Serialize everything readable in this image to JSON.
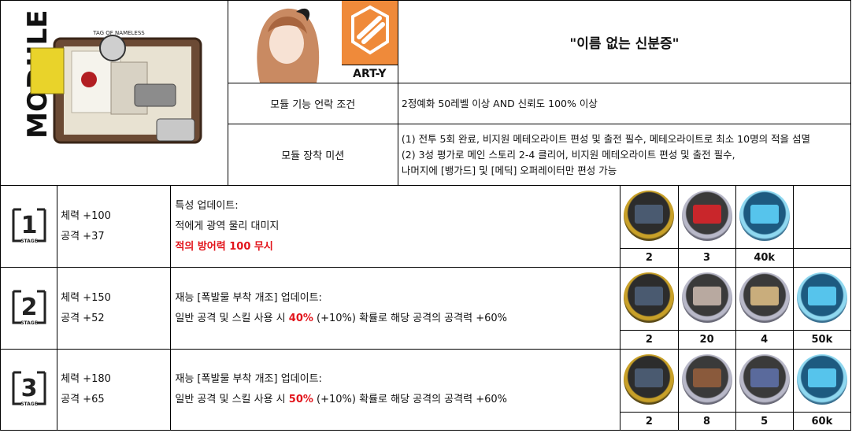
{
  "header": {
    "title": "\"이름 없는 신분증\"",
    "brand_name": "ART-Y",
    "artwork_label": "TAG OF NAMELESS",
    "side_label": "MODULE",
    "unlock_label": "모듈 기능 언락 조건",
    "unlock_value": "2정예화 50레벨 이상 AND 신뢰도 100% 이상",
    "mission_label": "모듈 장착 미션",
    "mission_lines": [
      "(1) 전투 5회 완료, 비지원 메테오라이트 편성 및 출전 필수, 메테오라이트로 최소 10명의 적을 섬멸",
      "(2) 3성 평가로 메인 스토리 2-4 클리어, 비지원 메테오라이트 편성 및 출전 필수,",
      "나머지에 [뱅가드] 및 [메딕] 오퍼레이터만 편성 가능"
    ],
    "colors": {
      "brand_bg": "#ef8a3a",
      "emphasis": "#e2141b"
    }
  },
  "stages": [
    {
      "num": "1",
      "badge_text": "STAGE",
      "hp": "체력 +100",
      "atk": "공격 +37",
      "effect_title": "특성 업데이트:",
      "effect_line": "적에게 광역 물리 대미지",
      "effect_red": "적의 방어력 100 무시",
      "materials": [
        {
          "icon": "module-data-block-icon",
          "qty": "2"
        },
        {
          "icon": "red-bricks-icon",
          "qty": "3"
        },
        {
          "icon": "lmd-icon",
          "qty": "40k"
        },
        {
          "icon": "",
          "qty": ""
        }
      ]
    },
    {
      "num": "2",
      "badge_text": "STAGE",
      "hp": "체력 +150",
      "atk": "공격 +52",
      "effect_title": "재능 [폭발물 부착 개조] 업데이트:",
      "effect_pre": "일반 공격 및 스킬 사용 시 ",
      "effect_red": "40%",
      "effect_post": " (+10%) 확률로 해당 공격의 공격력 +60%",
      "materials": [
        {
          "icon": "module-data-block-icon",
          "qty": "2"
        },
        {
          "icon": "crystal-tool-icon",
          "qty": "20"
        },
        {
          "icon": "sugar-box-icon",
          "qty": "4"
        },
        {
          "icon": "lmd-icon",
          "qty": "50k"
        }
      ]
    },
    {
      "num": "3",
      "badge_text": "STAGE",
      "hp": "체력 +180",
      "atk": "공격 +65",
      "effect_title": "재능 [폭발물 부착 개조] 업데이트:",
      "effect_pre": "일반 공격 및 스킬 사용 시 ",
      "effect_red": "50%",
      "effect_post": " (+10%) 확률로 해당 공격의 공격력 +60%",
      "materials": [
        {
          "icon": "module-data-block-icon",
          "qty": "2"
        },
        {
          "icon": "synthetic-component-icon",
          "qty": "8"
        },
        {
          "icon": "cube-icon",
          "qty": "5"
        },
        {
          "icon": "lmd-icon",
          "qty": "60k"
        }
      ]
    }
  ]
}
